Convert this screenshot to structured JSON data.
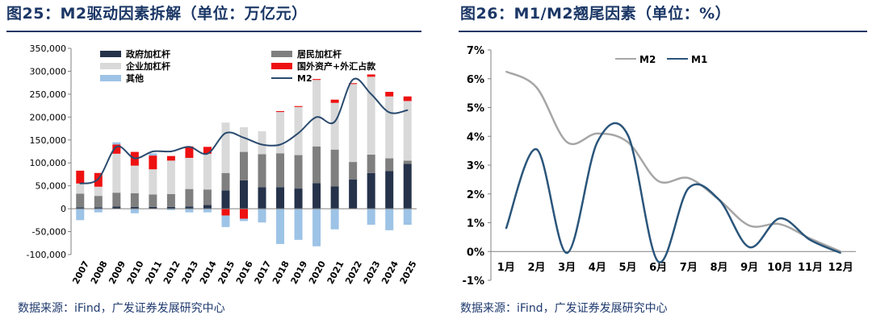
{
  "left_panel": {
    "title": "图25：M2驱动因素拆解（单位：万亿元）",
    "source": "数据来源：iFind，广发证券发展研究中心"
  },
  "right_panel": {
    "title": "图26：M1/M2翘尾因素（单位：%）",
    "source": "数据来源：iFind，广发证券发展研究中心"
  },
  "colors": {
    "gov": "#25324a",
    "household": "#7f7f7f",
    "corporate": "#d9d9d9",
    "foreign": "#ee1111",
    "other": "#9dc3e6",
    "m2_line": "#2a4a6e",
    "m2_right": "#a6a6a6",
    "m1_right": "#2a557a",
    "text": "#1f3a6e"
  },
  "chart_data": [
    {
      "type": "bar",
      "stacked": true,
      "title": "M2驱动因素拆解（单位：万亿元）",
      "categories": [
        "2007",
        "2008",
        "2009",
        "2010",
        "2011",
        "2012",
        "2013",
        "2014",
        "2015",
        "2016",
        "2017",
        "2018",
        "2019",
        "2020",
        "2021",
        "2022",
        "2023",
        "2024",
        "2025"
      ],
      "ylim": [
        -100000,
        350000
      ],
      "yticks": [
        -100000,
        -50000,
        0,
        50000,
        100000,
        150000,
        200000,
        250000,
        300000,
        350000
      ],
      "ytick_labels": [
        "-100,000",
        "-50,000",
        "0",
        "50,000",
        "100,000",
        "150,000",
        "200,000",
        "250,000",
        "300,000",
        "350,000"
      ],
      "series": [
        {
          "name": "政府加杠杆",
          "kind": "bar",
          "color_key": "gov",
          "values": [
            3000,
            3000,
            5000,
            4000,
            4000,
            4000,
            5000,
            8000,
            40000,
            62000,
            47000,
            47000,
            44000,
            56000,
            49000,
            64000,
            78000,
            82000,
            98000
          ]
        },
        {
          "name": "居民加杠杆",
          "kind": "bar",
          "color_key": "household",
          "values": [
            30000,
            25000,
            30000,
            30000,
            27000,
            28000,
            38000,
            34000,
            38000,
            62000,
            72000,
            74000,
            73000,
            80000,
            80000,
            38000,
            40000,
            28000,
            7000
          ]
        },
        {
          "name": "企业加杠杆",
          "kind": "bar",
          "color_key": "corporate",
          "values": [
            22000,
            20000,
            85000,
            60000,
            55000,
            73000,
            68000,
            78000,
            110000,
            54000,
            50000,
            90000,
            105000,
            145000,
            102000,
            170000,
            170000,
            135000,
            130000
          ]
        },
        {
          "name": "国外资产+外汇占款",
          "kind": "bar",
          "color_key": "foreign",
          "values": [
            28000,
            30000,
            20000,
            30000,
            30000,
            10000,
            25000,
            15000,
            -15000,
            -22000,
            0,
            2000,
            2000,
            2000,
            7000,
            2000,
            5000,
            10000,
            10000
          ]
        },
        {
          "name": "其他",
          "kind": "bar",
          "color_key": "other",
          "values": [
            -25000,
            -8000,
            5000,
            -10000,
            5000,
            -3000,
            -8000,
            -8000,
            -25000,
            -5000,
            -30000,
            -77000,
            -68000,
            -82000,
            -45000,
            0,
            -35000,
            -47000,
            -35000
          ]
        },
        {
          "name": "M2",
          "kind": "line",
          "color_key": "m2_line",
          "values": [
            55000,
            65000,
            135000,
            110000,
            125000,
            125000,
            135000,
            120000,
            165000,
            155000,
            140000,
            140000,
            165000,
            200000,
            190000,
            282000,
            250000,
            210000,
            215000
          ]
        }
      ]
    },
    {
      "type": "line",
      "title": "M1/M2翘尾因素（单位：%）",
      "categories": [
        "1月",
        "2月",
        "3月",
        "4月",
        "5月",
        "6月",
        "7月",
        "8月",
        "9月",
        "10月",
        "11月",
        "12月"
      ],
      "ylim": [
        -1,
        7
      ],
      "yticks": [
        -1,
        0,
        1,
        2,
        3,
        4,
        5,
        6,
        7
      ],
      "ytick_labels": [
        "-1%",
        "0%",
        "1%",
        "2%",
        "3%",
        "4%",
        "5%",
        "6%",
        "7%"
      ],
      "series": [
        {
          "name": "M2",
          "color_key": "m2_right",
          "values": [
            6.25,
            5.7,
            3.8,
            4.1,
            3.8,
            2.45,
            2.55,
            1.8,
            0.9,
            0.95,
            0.45,
            0.0
          ]
        },
        {
          "name": "M1",
          "color_key": "m1_right",
          "values": [
            0.8,
            3.55,
            -0.05,
            3.8,
            4.05,
            -0.35,
            2.2,
            1.8,
            0.15,
            1.15,
            0.4,
            -0.05
          ]
        }
      ]
    }
  ]
}
